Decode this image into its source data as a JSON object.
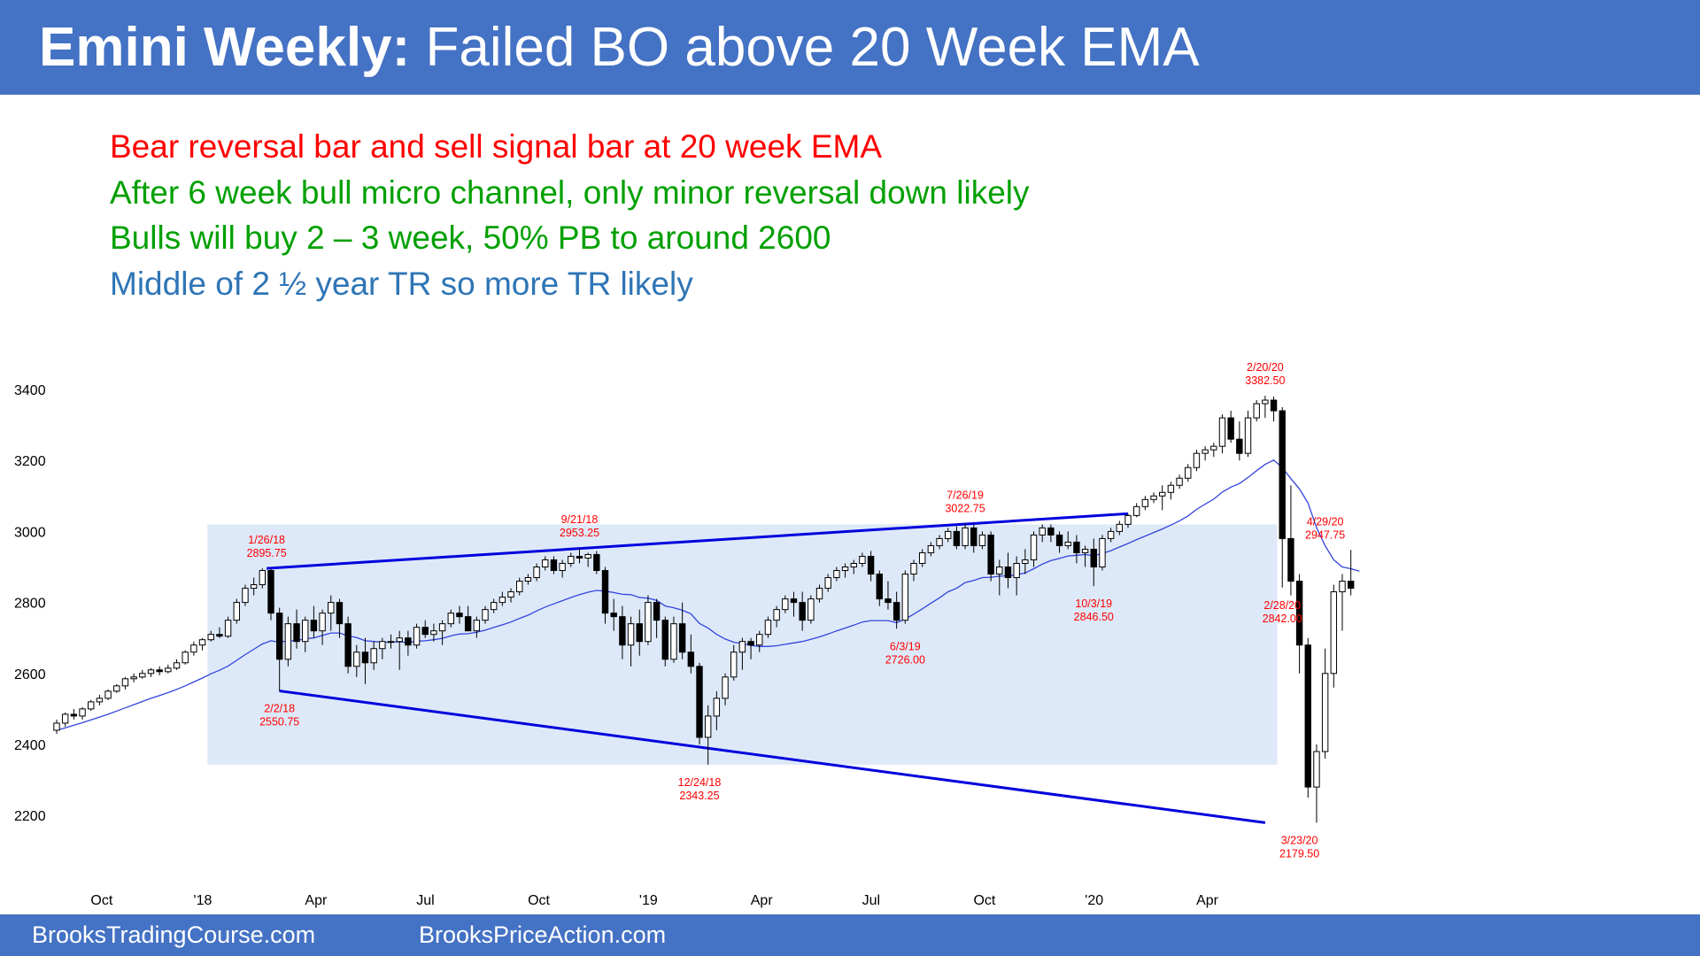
{
  "header": {
    "title_bold": "Emini Weekly:",
    "title_rest": " Failed BO above 20 Week EMA"
  },
  "notes": [
    {
      "text": "Bear reversal bar and sell signal bar at 20 week EMA",
      "color": "#ff0000"
    },
    {
      "text": "After 6 week bull micro channel, only minor reversal down likely",
      "color": "#00a000"
    },
    {
      "text": "Bulls will buy 2 – 3 week, 50% PB to around 2600",
      "color": "#00a000"
    },
    {
      "text": "Middle of 2 ½ year TR so more TR likely",
      "color": "#2e75b6"
    }
  ],
  "footer": {
    "left": "BrooksTradingCourse.com",
    "right": "BrooksPriceAction.com"
  },
  "chart_data": {
    "type": "candlestick",
    "timeframe": "weekly",
    "ylim": [
      2050,
      3470
    ],
    "yticks": [
      2200,
      2400,
      2600,
      2800,
      3000,
      3200,
      3400
    ],
    "xticks": [
      {
        "label": "Oct",
        "week": 5
      },
      {
        "label": "'18",
        "week": 17
      },
      {
        "label": "Apr",
        "week": 30
      },
      {
        "label": "Jul",
        "week": 43
      },
      {
        "label": "Oct",
        "week": 56
      },
      {
        "label": "'19",
        "week": 69
      },
      {
        "label": "Apr",
        "week": 82
      },
      {
        "label": "Jul",
        "week": 95
      },
      {
        "label": "Oct",
        "week": 108
      },
      {
        "label": "'20",
        "week": 121
      },
      {
        "label": "Apr",
        "week": 134
      }
    ],
    "candles": [
      [
        2440,
        2470,
        2430,
        2460
      ],
      [
        2460,
        2490,
        2450,
        2485
      ],
      [
        2485,
        2500,
        2470,
        2480
      ],
      [
        2480,
        2505,
        2470,
        2500
      ],
      [
        2500,
        2525,
        2495,
        2520
      ],
      [
        2520,
        2540,
        2510,
        2530
      ],
      [
        2530,
        2555,
        2525,
        2550
      ],
      [
        2550,
        2570,
        2545,
        2565
      ],
      [
        2565,
        2590,
        2555,
        2585
      ],
      [
        2585,
        2600,
        2575,
        2590
      ],
      [
        2590,
        2610,
        2585,
        2600
      ],
      [
        2600,
        2615,
        2590,
        2610
      ],
      [
        2610,
        2620,
        2595,
        2605
      ],
      [
        2605,
        2625,
        2600,
        2615
      ],
      [
        2615,
        2640,
        2610,
        2630
      ],
      [
        2630,
        2665,
        2625,
        2660
      ],
      [
        2660,
        2690,
        2650,
        2680
      ],
      [
        2680,
        2700,
        2665,
        2695
      ],
      [
        2695,
        2720,
        2690,
        2710
      ],
      [
        2710,
        2730,
        2700,
        2705
      ],
      [
        2705,
        2760,
        2700,
        2750
      ],
      [
        2750,
        2810,
        2740,
        2800
      ],
      [
        2800,
        2850,
        2790,
        2840
      ],
      [
        2840,
        2870,
        2820,
        2850
      ],
      [
        2850,
        2896,
        2840,
        2890
      ],
      [
        2890,
        2895,
        2750,
        2770
      ],
      [
        2770,
        2785,
        2550,
        2640
      ],
      [
        2640,
        2760,
        2620,
        2740
      ],
      [
        2740,
        2780,
        2670,
        2690
      ],
      [
        2690,
        2760,
        2660,
        2750
      ],
      [
        2750,
        2790,
        2700,
        2720
      ],
      [
        2720,
        2780,
        2680,
        2770
      ],
      [
        2770,
        2820,
        2720,
        2800
      ],
      [
        2800,
        2810,
        2700,
        2740
      ],
      [
        2740,
        2760,
        2600,
        2620
      ],
      [
        2620,
        2680,
        2590,
        2660
      ],
      [
        2660,
        2700,
        2570,
        2630
      ],
      [
        2630,
        2690,
        2610,
        2670
      ],
      [
        2670,
        2700,
        2640,
        2690
      ],
      [
        2690,
        2710,
        2670,
        2690
      ],
      [
        2690,
        2720,
        2610,
        2700
      ],
      [
        2700,
        2720,
        2650,
        2680
      ],
      [
        2680,
        2740,
        2670,
        2730
      ],
      [
        2730,
        2750,
        2700,
        2710
      ],
      [
        2710,
        2740,
        2690,
        2720
      ],
      [
        2720,
        2750,
        2680,
        2740
      ],
      [
        2740,
        2780,
        2730,
        2770
      ],
      [
        2770,
        2790,
        2740,
        2760
      ],
      [
        2760,
        2790,
        2730,
        2720
      ],
      [
        2720,
        2760,
        2700,
        2750
      ],
      [
        2750,
        2790,
        2740,
        2780
      ],
      [
        2780,
        2810,
        2770,
        2800
      ],
      [
        2800,
        2830,
        2790,
        2815
      ],
      [
        2815,
        2840,
        2800,
        2830
      ],
      [
        2830,
        2870,
        2820,
        2860
      ],
      [
        2860,
        2880,
        2850,
        2870
      ],
      [
        2870,
        2910,
        2860,
        2900
      ],
      [
        2900,
        2930,
        2890,
        2920
      ],
      [
        2920,
        2930,
        2880,
        2890
      ],
      [
        2890,
        2920,
        2870,
        2910
      ],
      [
        2910,
        2940,
        2900,
        2930
      ],
      [
        2930,
        2953,
        2910,
        2925
      ],
      [
        2925,
        2940,
        2900,
        2935
      ],
      [
        2935,
        2945,
        2880,
        2890
      ],
      [
        2890,
        2900,
        2740,
        2770
      ],
      [
        2770,
        2810,
        2720,
        2760
      ],
      [
        2760,
        2790,
        2640,
        2680
      ],
      [
        2680,
        2760,
        2620,
        2740
      ],
      [
        2740,
        2780,
        2650,
        2690
      ],
      [
        2690,
        2820,
        2680,
        2800
      ],
      [
        2800,
        2810,
        2700,
        2750
      ],
      [
        2750,
        2760,
        2620,
        2640
      ],
      [
        2640,
        2760,
        2630,
        2740
      ],
      [
        2740,
        2800,
        2640,
        2660
      ],
      [
        2660,
        2710,
        2600,
        2620
      ],
      [
        2620,
        2630,
        2400,
        2420
      ],
      [
        2420,
        2510,
        2343,
        2480
      ],
      [
        2480,
        2550,
        2440,
        2530
      ],
      [
        2530,
        2600,
        2510,
        2590
      ],
      [
        2590,
        2680,
        2580,
        2660
      ],
      [
        2660,
        2700,
        2610,
        2690
      ],
      [
        2690,
        2700,
        2640,
        2680
      ],
      [
        2680,
        2720,
        2660,
        2710
      ],
      [
        2710,
        2760,
        2700,
        2750
      ],
      [
        2750,
        2790,
        2730,
        2780
      ],
      [
        2780,
        2820,
        2770,
        2810
      ],
      [
        2810,
        2830,
        2760,
        2800
      ],
      [
        2800,
        2830,
        2720,
        2750
      ],
      [
        2750,
        2820,
        2740,
        2810
      ],
      [
        2810,
        2850,
        2800,
        2840
      ],
      [
        2840,
        2880,
        2830,
        2870
      ],
      [
        2870,
        2900,
        2860,
        2890
      ],
      [
        2890,
        2910,
        2870,
        2900
      ],
      [
        2900,
        2920,
        2880,
        2910
      ],
      [
        2910,
        2940,
        2900,
        2930
      ],
      [
        2930,
        2945,
        2860,
        2880
      ],
      [
        2880,
        2890,
        2790,
        2810
      ],
      [
        2810,
        2860,
        2780,
        2800
      ],
      [
        2800,
        2830,
        2726,
        2750
      ],
      [
        2750,
        2890,
        2740,
        2880
      ],
      [
        2880,
        2920,
        2860,
        2910
      ],
      [
        2910,
        2950,
        2900,
        2940
      ],
      [
        2940,
        2970,
        2930,
        2960
      ],
      [
        2960,
        2990,
        2950,
        2980
      ],
      [
        2980,
        3010,
        2970,
        3000
      ],
      [
        3000,
        3015,
        2950,
        2960
      ],
      [
        2960,
        3023,
        2950,
        3010
      ],
      [
        3010,
        3020,
        2940,
        2960
      ],
      [
        2960,
        3000,
        2950,
        2990
      ],
      [
        2990,
        3000,
        2860,
        2880
      ],
      [
        2880,
        2920,
        2820,
        2900
      ],
      [
        2900,
        2940,
        2840,
        2870
      ],
      [
        2870,
        2930,
        2820,
        2910
      ],
      [
        2910,
        2950,
        2880,
        2920
      ],
      [
        2920,
        3000,
        2900,
        2990
      ],
      [
        2990,
        3020,
        2970,
        3010
      ],
      [
        3010,
        3020,
        2970,
        2990
      ],
      [
        2990,
        3000,
        2940,
        2960
      ],
      [
        2960,
        3000,
        2950,
        2970
      ],
      [
        2970,
        2990,
        2910,
        2940
      ],
      [
        2940,
        2960,
        2900,
        2950
      ],
      [
        2950,
        2980,
        2846,
        2900
      ],
      [
        2900,
        2990,
        2890,
        2980
      ],
      [
        2980,
        3010,
        2970,
        3000
      ],
      [
        3000,
        3030,
        2990,
        3020
      ],
      [
        3020,
        3050,
        3010,
        3045
      ],
      [
        3045,
        3080,
        3040,
        3070
      ],
      [
        3070,
        3100,
        3060,
        3090
      ],
      [
        3090,
        3110,
        3080,
        3100
      ],
      [
        3100,
        3130,
        3060,
        3110
      ],
      [
        3110,
        3140,
        3090,
        3130
      ],
      [
        3130,
        3160,
        3120,
        3150
      ],
      [
        3150,
        3190,
        3140,
        3180
      ],
      [
        3180,
        3230,
        3170,
        3220
      ],
      [
        3220,
        3240,
        3200,
        3230
      ],
      [
        3230,
        3250,
        3210,
        3240
      ],
      [
        3240,
        3330,
        3220,
        3320
      ],
      [
        3320,
        3340,
        3250,
        3260
      ],
      [
        3260,
        3310,
        3200,
        3220
      ],
      [
        3220,
        3340,
        3210,
        3320
      ],
      [
        3320,
        3370,
        3310,
        3360
      ],
      [
        3360,
        3382.5,
        3320,
        3370
      ],
      [
        3370,
        3380,
        3310,
        3340
      ],
      [
        3340,
        3350,
        2842,
        2980
      ],
      [
        2980,
        3130,
        2820,
        2860
      ],
      [
        2860,
        2880,
        2600,
        2680
      ],
      [
        2680,
        2700,
        2250,
        2280
      ],
      [
        2280,
        2400,
        2179.5,
        2380
      ],
      [
        2380,
        2670,
        2360,
        2600
      ],
      [
        2600,
        2850,
        2560,
        2830
      ],
      [
        2830,
        2880,
        2720,
        2860
      ],
      [
        2860,
        2948,
        2820,
        2840
      ]
    ],
    "ema20": [
      2440,
      2447,
      2454,
      2461,
      2469,
      2477,
      2485,
      2494,
      2503,
      2512,
      2521,
      2530,
      2538,
      2546,
      2555,
      2565,
      2576,
      2587,
      2599,
      2609,
      2621,
      2637,
      2653,
      2668,
      2683,
      2692,
      2688,
      2692,
      2692,
      2698,
      2700,
      2707,
      2714,
      2714,
      2706,
      2701,
      2692,
      2690,
      2688,
      2688,
      2689,
      2687,
      2691,
      2692,
      2695,
      2699,
      2706,
      2711,
      2712,
      2716,
      2722,
      2730,
      2737,
      2745,
      2755,
      2764,
      2776,
      2787,
      2796,
      2805,
      2814,
      2822,
      2829,
      2834,
      2832,
      2828,
      2823,
      2822,
      2814,
      2812,
      2806,
      2790,
      2785,
      2778,
      2768,
      2741,
      2728,
      2710,
      2697,
      2688,
      2684,
      2679,
      2676,
      2676,
      2678,
      2682,
      2686,
      2690,
      2696,
      2703,
      2711,
      2720,
      2728,
      2736,
      2745,
      2749,
      2749,
      2749,
      2743,
      2753,
      2767,
      2782,
      2798,
      2813,
      2830,
      2840,
      2856,
      2862,
      2870,
      2871,
      2874,
      2875,
      2878,
      2883,
      2895,
      2908,
      2918,
      2924,
      2931,
      2933,
      2935,
      2932,
      2938,
      2946,
      2956,
      2966,
      2977,
      2987,
      2997,
      3007,
      3018,
      3030,
      3044,
      3062,
      3077,
      3091,
      3111,
      3125,
      3135,
      3152,
      3171,
      3189,
      3201,
      3180,
      3149,
      3120,
      3080,
      3010,
      2960,
      2920,
      2900,
      2895,
      2888
    ],
    "range_box": {
      "x0": 18,
      "x1": 142,
      "y_top": 3020,
      "y_bottom": 2343
    },
    "trend_lines": [
      {
        "from": [
          24.5,
          2896
        ],
        "to": [
          125,
          3050
        ],
        "color": "#0000dd"
      },
      {
        "from": [
          26,
          2550.75
        ],
        "to": [
          141,
          2179.5
        ],
        "color": "#0000dd"
      }
    ],
    "annotations": [
      {
        "date": "1/26/18",
        "value": "2895.75",
        "week": 24.5,
        "y": 2896,
        "pos": "above"
      },
      {
        "date": "2/2/18",
        "value": "2550.75",
        "week": 26,
        "y": 2550.75,
        "pos": "below"
      },
      {
        "date": "9/21/18",
        "value": "2953.25",
        "week": 61,
        "y": 2953.25,
        "pos": "above"
      },
      {
        "date": "12/24/18",
        "value": "2343.25",
        "week": 75,
        "y": 2343.25,
        "pos": "below"
      },
      {
        "date": "6/3/19",
        "value": "2726.00",
        "week": 99,
        "y": 2726,
        "pos": "below"
      },
      {
        "date": "7/26/19",
        "value": "3022.75",
        "week": 106,
        "y": 3022.75,
        "pos": "above"
      },
      {
        "date": "10/3/19",
        "value": "2846.50",
        "week": 121,
        "y": 2846.5,
        "pos": "below"
      },
      {
        "date": "2/20/20",
        "value": "3382.50",
        "week": 141,
        "y": 3382.5,
        "pos": "above"
      },
      {
        "date": "2/28/20",
        "value": "2842.00",
        "week": 143,
        "y": 2842,
        "pos": "below"
      },
      {
        "date": "3/23/20",
        "value": "2179.50",
        "week": 145,
        "y": 2179.5,
        "pos": "below"
      },
      {
        "date": "4/29/20",
        "value": "2947.75",
        "week": 148,
        "y": 2947.75,
        "pos": "above"
      }
    ],
    "colors": {
      "candle": "#000000",
      "ema": "#3344dd",
      "range_box": "#dde9f8",
      "annotation": "#ff0000",
      "axis_text": "#000000"
    }
  }
}
